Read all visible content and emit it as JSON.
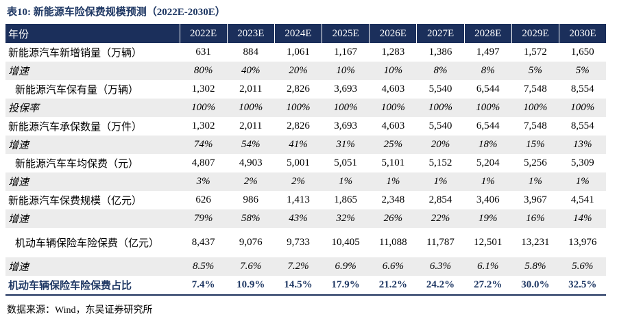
{
  "title": "表10:  新能源车险保费规模预测（2022E-2030E）",
  "table": {
    "header": [
      "年份",
      "2022E",
      "2023E",
      "2024E",
      "2025E",
      "2026E",
      "2027E",
      "2028E",
      "2029E",
      "2030E"
    ],
    "rows": [
      [
        "新能源汽车新增销量（万辆）",
        "631",
        "884",
        "1,061",
        "1,167",
        "1,283",
        "1,386",
        "1,497",
        "1,572",
        "1,650"
      ],
      [
        "增速",
        "80%",
        "40%",
        "20%",
        "10%",
        "10%",
        "8%",
        "8%",
        "5%",
        "5%"
      ],
      [
        "新能源汽车保有量（万辆）",
        "1,302",
        "2,011",
        "2,826",
        "3,693",
        "4,603",
        "5,540",
        "6,544",
        "7,548",
        "8,554"
      ],
      [
        "投保率",
        "100%",
        "100%",
        "100%",
        "100%",
        "100%",
        "100%",
        "100%",
        "100%",
        "100%"
      ],
      [
        "新能源汽车承保数量（万件）",
        "1,302",
        "2,011",
        "2,826",
        "3,693",
        "4,603",
        "5,540",
        "6,544",
        "7,548",
        "8,554"
      ],
      [
        "增速",
        "74%",
        "54%",
        "41%",
        "31%",
        "25%",
        "20%",
        "18%",
        "15%",
        "13%"
      ],
      [
        "新能源汽车车均保费（元）",
        "4,807",
        "4,903",
        "5,001",
        "5,051",
        "5,101",
        "5,152",
        "5,204",
        "5,256",
        "5,309"
      ],
      [
        "增速",
        "3%",
        "2%",
        "2%",
        "1%",
        "1%",
        "1%",
        "1%",
        "1%",
        "1%"
      ],
      [
        "新能源汽车保费规模（亿元）",
        "626",
        "986",
        "1,413",
        "1,865",
        "2,348",
        "2,854",
        "3,406",
        "3,967",
        "4,541"
      ],
      [
        "增速",
        "79%",
        "58%",
        "43%",
        "32%",
        "26%",
        "22%",
        "19%",
        "16%",
        "14%"
      ],
      [
        "机动车辆保险车险保费（亿元）",
        "8,437",
        "9,076",
        "9,733",
        "10,405",
        "11,088",
        "11,787",
        "12,501",
        "13,231",
        "13,976"
      ],
      [
        "增速",
        "8.5%",
        "7.6%",
        "7.2%",
        "6.9%",
        "6.6%",
        "6.3%",
        "6.1%",
        "5.8%",
        "5.6%"
      ],
      [
        "机动车辆保险车险保费占比",
        "7.4%",
        "10.9%",
        "14.5%",
        "17.9%",
        "21.2%",
        "24.2%",
        "27.2%",
        "30.0%",
        "32.5%"
      ]
    ]
  },
  "source": "数据来源：Wind，东吴证券研究所"
}
